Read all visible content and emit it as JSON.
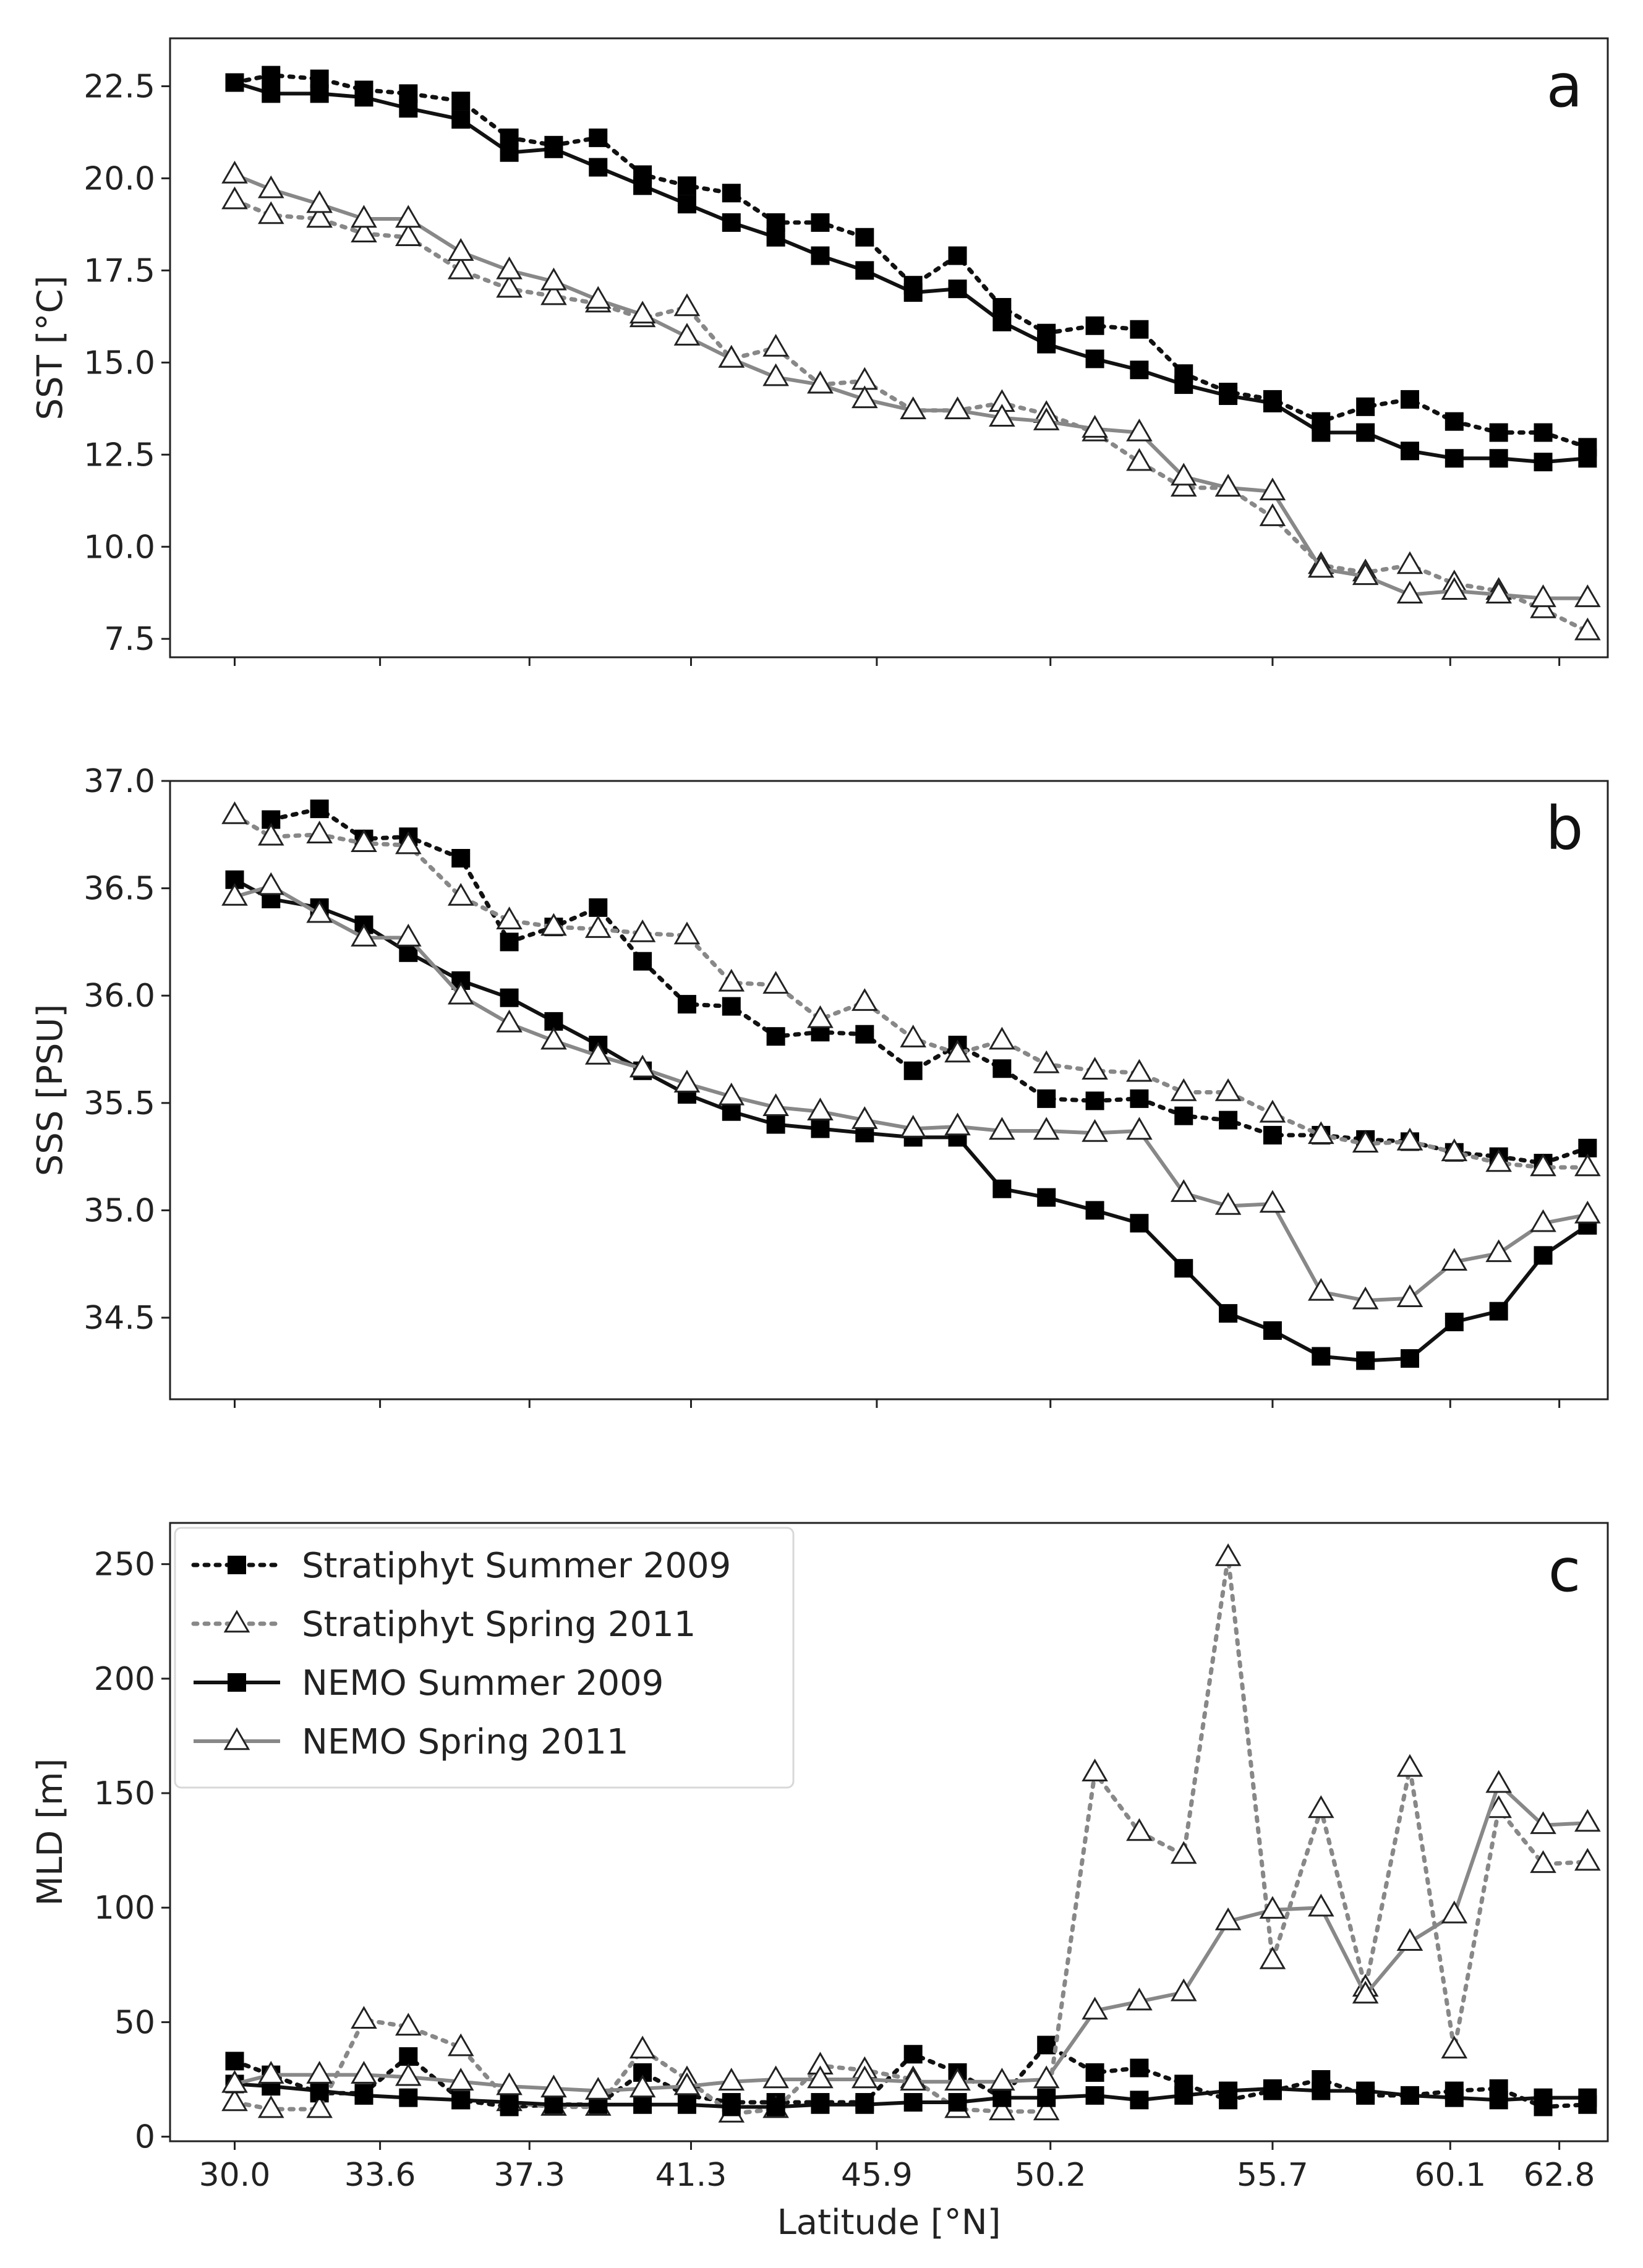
{
  "chart_data": [
    {
      "type": "line",
      "panel_label": "a",
      "ylabel": "SST [°C]",
      "xlabel": "",
      "ylim": [
        7.0,
        23.8
      ],
      "yticks": [
        7.5,
        10.0,
        12.5,
        15.0,
        17.5,
        20.0,
        22.5
      ],
      "ytick_labels": [
        "7.5",
        "10.0",
        "12.5",
        "15.0",
        "17.5",
        "20.0",
        "22.5"
      ],
      "xlim": [
        28.4,
        64.0
      ],
      "xticks": [
        30.0,
        33.6,
        37.3,
        41.3,
        45.9,
        50.2,
        55.7,
        60.1,
        62.8
      ],
      "xtick_labels": [],
      "series": [
        {
          "name": "Stratiphyt Summer 2009",
          "x": [
            30.0,
            30.9,
            32.1,
            33.2,
            34.3,
            35.6,
            36.8,
            37.9,
            39.0,
            40.1,
            41.2,
            42.3,
            43.4,
            44.5,
            45.6,
            46.8,
            47.9,
            49.0,
            50.1,
            51.3,
            52.4,
            53.5,
            54.6,
            55.7,
            56.9,
            58.0,
            59.1,
            60.2,
            61.3,
            62.4,
            63.5
          ],
          "values": [
            22.6,
            22.8,
            22.7,
            22.4,
            22.3,
            22.1,
            21.1,
            20.9,
            21.1,
            20.1,
            19.8,
            19.6,
            18.8,
            18.8,
            18.4,
            17.1,
            17.9,
            16.5,
            15.8,
            16.0,
            15.9,
            14.7,
            14.2,
            14.0,
            13.4,
            13.8,
            14.0,
            13.4,
            13.1,
            13.1,
            12.7
          ]
        },
        {
          "name": "Stratiphyt Spring 2011",
          "x": [
            30.0,
            30.9,
            32.1,
            33.2,
            34.3,
            35.6,
            36.8,
            37.9,
            39.0,
            40.1,
            41.2,
            42.3,
            43.4,
            44.5,
            45.6,
            46.8,
            47.9,
            49.0,
            50.1,
            51.3,
            52.4,
            53.5,
            54.6,
            55.7,
            56.9,
            58.0,
            59.1,
            60.2,
            61.3,
            62.4,
            63.5
          ],
          "values": [
            19.4,
            19.0,
            18.9,
            18.5,
            18.4,
            17.5,
            17.0,
            16.8,
            16.6,
            16.2,
            16.5,
            15.1,
            15.4,
            14.4,
            14.5,
            13.7,
            13.7,
            13.9,
            13.6,
            13.1,
            12.3,
            11.6,
            11.6,
            10.8,
            9.5,
            9.3,
            9.5,
            9.0,
            8.8,
            8.3,
            7.7
          ]
        },
        {
          "name": "NEMO Summer 2009",
          "x": [
            30.0,
            30.9,
            32.1,
            33.2,
            34.3,
            35.6,
            36.8,
            37.9,
            39.0,
            40.1,
            41.2,
            42.3,
            43.4,
            44.5,
            45.6,
            46.8,
            47.9,
            49.0,
            50.1,
            51.3,
            52.4,
            53.5,
            54.6,
            55.7,
            56.9,
            58.0,
            59.1,
            60.2,
            61.3,
            62.4,
            63.5
          ],
          "values": [
            22.6,
            22.3,
            22.3,
            22.2,
            21.9,
            21.6,
            20.7,
            20.8,
            20.3,
            19.8,
            19.3,
            18.8,
            18.4,
            17.9,
            17.5,
            16.9,
            17.0,
            16.1,
            15.5,
            15.1,
            14.8,
            14.4,
            14.1,
            13.9,
            13.1,
            13.1,
            12.6,
            12.4,
            12.4,
            12.3,
            12.4
          ]
        },
        {
          "name": "NEMO Spring 2011",
          "x": [
            30.0,
            30.9,
            32.1,
            33.2,
            34.3,
            35.6,
            36.8,
            37.9,
            39.0,
            40.1,
            41.2,
            42.3,
            43.4,
            44.5,
            45.6,
            46.8,
            47.9,
            49.0,
            50.1,
            51.3,
            52.4,
            53.5,
            54.6,
            55.7,
            56.9,
            58.0,
            59.1,
            60.2,
            61.3,
            62.4,
            63.5
          ],
          "values": [
            20.1,
            19.7,
            19.3,
            18.9,
            18.9,
            18.0,
            17.5,
            17.2,
            16.7,
            16.3,
            15.7,
            15.1,
            14.6,
            14.4,
            14.0,
            13.7,
            13.7,
            13.5,
            13.4,
            13.2,
            13.1,
            11.9,
            11.6,
            11.5,
            9.4,
            9.2,
            8.7,
            8.8,
            8.7,
            8.6,
            8.6
          ]
        }
      ]
    },
    {
      "type": "line",
      "panel_label": "b",
      "ylabel": "SSS [PSU]",
      "xlabel": "",
      "ylim": [
        34.12,
        37.0
      ],
      "yticks": [
        34.5,
        35.0,
        35.5,
        36.0,
        36.5,
        37.0
      ],
      "ytick_labels": [
        "34.5",
        "35.0",
        "35.5",
        "36.0",
        "36.5",
        "37.0"
      ],
      "xlim": [
        28.4,
        64.0
      ],
      "xticks": [
        30.0,
        33.6,
        37.3,
        41.3,
        45.9,
        50.2,
        55.7,
        60.1,
        62.8
      ],
      "xtick_labels": [],
      "series": [
        {
          "name": "Stratiphyt Summer 2009",
          "x": [
            30.9,
            32.1,
            33.2,
            34.3,
            35.6,
            36.8,
            37.9,
            39.0,
            40.1,
            41.2,
            42.3,
            43.4,
            44.5,
            45.6,
            46.8,
            47.9,
            49.0,
            50.1,
            51.3,
            52.4,
            53.5,
            54.6,
            55.7,
            56.9,
            58.0,
            59.1,
            60.2,
            61.3,
            62.4,
            63.5
          ],
          "values": [
            36.82,
            36.87,
            36.73,
            36.74,
            36.64,
            36.25,
            36.32,
            36.41,
            36.16,
            35.96,
            35.95,
            35.81,
            35.83,
            35.82,
            35.65,
            35.77,
            35.66,
            35.52,
            35.51,
            35.52,
            35.44,
            35.42,
            35.35,
            35.35,
            35.33,
            35.32,
            35.27,
            35.25,
            35.22,
            35.29
          ]
        },
        {
          "name": "Stratiphyt Spring 2011",
          "x": [
            30.0,
            30.9,
            32.1,
            33.2,
            34.3,
            35.6,
            36.8,
            37.9,
            39.0,
            40.1,
            41.2,
            42.3,
            43.4,
            44.5,
            45.6,
            46.8,
            47.9,
            49.0,
            50.1,
            51.3,
            52.4,
            53.5,
            54.6,
            55.7,
            56.9,
            58.0,
            59.1,
            60.2,
            61.3,
            62.4,
            63.5
          ],
          "values": [
            36.84,
            36.74,
            36.75,
            36.71,
            36.7,
            36.46,
            36.35,
            36.32,
            36.31,
            36.29,
            36.28,
            36.06,
            36.05,
            35.89,
            35.97,
            35.8,
            35.73,
            35.79,
            35.68,
            35.65,
            35.64,
            35.55,
            35.55,
            35.45,
            35.35,
            35.31,
            35.32,
            35.27,
            35.22,
            35.2,
            35.2
          ]
        },
        {
          "name": "NEMO Summer 2009",
          "x": [
            30.0,
            30.9,
            32.1,
            33.2,
            34.3,
            35.6,
            36.8,
            37.9,
            39.0,
            40.1,
            41.2,
            42.3,
            43.4,
            44.5,
            45.6,
            46.8,
            47.9,
            49.0,
            50.1,
            51.3,
            52.4,
            53.5,
            54.6,
            55.7,
            56.9,
            58.0,
            59.1,
            60.2,
            61.3,
            62.4,
            63.5
          ],
          "values": [
            36.54,
            36.45,
            36.41,
            36.33,
            36.2,
            36.07,
            35.99,
            35.88,
            35.77,
            35.65,
            35.54,
            35.46,
            35.4,
            35.38,
            35.36,
            35.34,
            35.34,
            35.1,
            35.06,
            35.0,
            34.94,
            34.73,
            34.52,
            34.44,
            34.32,
            34.3,
            34.31,
            34.48,
            34.53,
            34.79,
            34.93
          ]
        },
        {
          "name": "NEMO Spring 2011",
          "x": [
            30.0,
            30.9,
            32.1,
            33.2,
            34.3,
            35.6,
            36.8,
            37.9,
            39.0,
            40.1,
            41.2,
            42.3,
            43.4,
            44.5,
            45.6,
            46.8,
            47.9,
            49.0,
            50.1,
            51.3,
            52.4,
            53.5,
            54.6,
            55.7,
            56.9,
            58.0,
            59.1,
            60.2,
            61.3,
            62.4,
            63.5
          ],
          "values": [
            36.46,
            36.51,
            36.38,
            36.27,
            36.27,
            36.0,
            35.87,
            35.79,
            35.72,
            35.66,
            35.59,
            35.53,
            35.48,
            35.46,
            35.42,
            35.38,
            35.39,
            35.37,
            35.37,
            35.36,
            35.37,
            35.08,
            35.02,
            35.03,
            34.62,
            34.58,
            34.59,
            34.76,
            34.8,
            34.94,
            34.98
          ]
        }
      ]
    },
    {
      "type": "line",
      "panel_label": "c",
      "ylabel": "MLD [m]",
      "xlabel": "Latitude [°N]",
      "ylim": [
        -2,
        268
      ],
      "yticks": [
        0,
        50,
        100,
        150,
        200,
        250
      ],
      "ytick_labels": [
        "0",
        "50",
        "100",
        "150",
        "200",
        "250"
      ],
      "xlim": [
        28.4,
        64.0
      ],
      "xticks": [
        30.0,
        33.6,
        37.3,
        41.3,
        45.9,
        50.2,
        55.7,
        60.1,
        62.8
      ],
      "xtick_labels": [
        "30.0",
        "33.6",
        "37.3",
        "41.3",
        "45.9",
        "50.2",
        "55.7",
        "60.1",
        "62.8"
      ],
      "legend": {
        "position": "upper-left",
        "entries": [
          "Stratiphyt Summer 2009",
          "Stratiphyt Spring 2011",
          "NEMO Summer 2009",
          "NEMO Spring 2011"
        ]
      },
      "series": [
        {
          "name": "Stratiphyt Summer 2009",
          "x": [
            30.0,
            30.9,
            32.1,
            33.2,
            34.3,
            35.6,
            36.8,
            37.9,
            39.0,
            40.1,
            41.2,
            42.3,
            43.4,
            44.5,
            45.6,
            46.8,
            47.9,
            49.0,
            50.1,
            51.3,
            52.4,
            53.5,
            54.6,
            55.7,
            56.9,
            58.0,
            59.1,
            60.2,
            61.3,
            62.4,
            63.5
          ],
          "values": [
            33,
            27,
            19,
            19,
            35,
            16,
            13,
            14,
            14,
            28,
            18,
            15,
            15,
            15,
            15,
            36,
            28,
            17,
            40,
            28,
            30,
            23,
            16,
            20,
            25,
            18,
            18,
            20,
            21,
            13,
            14
          ]
        },
        {
          "name": "Stratiphyt Spring 2011",
          "x": [
            30.0,
            30.9,
            32.1,
            33.2,
            34.3,
            35.6,
            36.8,
            37.9,
            39.0,
            40.1,
            41.2,
            42.3,
            43.4,
            44.5,
            45.6,
            46.8,
            47.9,
            49.0,
            50.1,
            51.3,
            52.4,
            53.5,
            54.6,
            55.7,
            56.9,
            58.0,
            59.1,
            60.2,
            61.3,
            62.4,
            63.5
          ],
          "values": [
            15,
            12,
            12,
            51,
            48,
            39,
            15,
            13,
            13,
            38,
            25,
            10,
            12,
            31,
            29,
            25,
            12,
            11,
            11,
            159,
            133,
            123,
            253,
            77,
            143,
            65,
            161,
            38,
            143,
            119,
            120
          ]
        },
        {
          "name": "NEMO Summer 2009",
          "x": [
            30.0,
            30.9,
            32.1,
            33.2,
            34.3,
            35.6,
            36.8,
            37.9,
            39.0,
            40.1,
            41.2,
            42.3,
            43.4,
            44.5,
            45.6,
            46.8,
            47.9,
            49.0,
            50.1,
            51.3,
            52.4,
            53.5,
            54.6,
            55.7,
            56.9,
            58.0,
            59.1,
            60.2,
            61.3,
            62.4,
            63.5
          ],
          "values": [
            23,
            22,
            20,
            18,
            17,
            16,
            15,
            14,
            14,
            14,
            14,
            13,
            13,
            14,
            14,
            15,
            15,
            17,
            17,
            18,
            16,
            18,
            20,
            21,
            20,
            20,
            18,
            17,
            16,
            17,
            17
          ]
        },
        {
          "name": "NEMO Spring 2011",
          "x": [
            30.0,
            30.9,
            32.1,
            33.2,
            34.3,
            35.6,
            36.8,
            37.9,
            39.0,
            40.1,
            41.2,
            42.3,
            43.4,
            44.5,
            45.6,
            46.8,
            47.9,
            49.0,
            50.1,
            51.3,
            52.4,
            53.5,
            54.6,
            55.7,
            56.9,
            58.0,
            59.1,
            60.2,
            61.3,
            62.4,
            63.5
          ],
          "values": [
            23,
            27,
            27,
            27,
            26,
            24,
            22,
            21,
            20,
            21,
            22,
            24,
            25,
            25,
            25,
            24,
            24,
            24,
            25,
            55,
            59,
            63,
            94,
            99,
            100,
            62,
            85,
            97,
            154,
            136,
            137
          ]
        }
      ]
    }
  ],
  "styles": {
    "Stratiphyt Summer 2009": {
      "color": "#111111",
      "dash": "dotted",
      "marker": "square"
    },
    "Stratiphyt Spring 2011": {
      "color": "#888888",
      "dash": "dotted",
      "marker": "triangle"
    },
    "NEMO Summer 2009": {
      "color": "#111111",
      "dash": "solid",
      "marker": "square"
    },
    "NEMO Spring 2011": {
      "color": "#888888",
      "dash": "solid",
      "marker": "triangle"
    }
  }
}
